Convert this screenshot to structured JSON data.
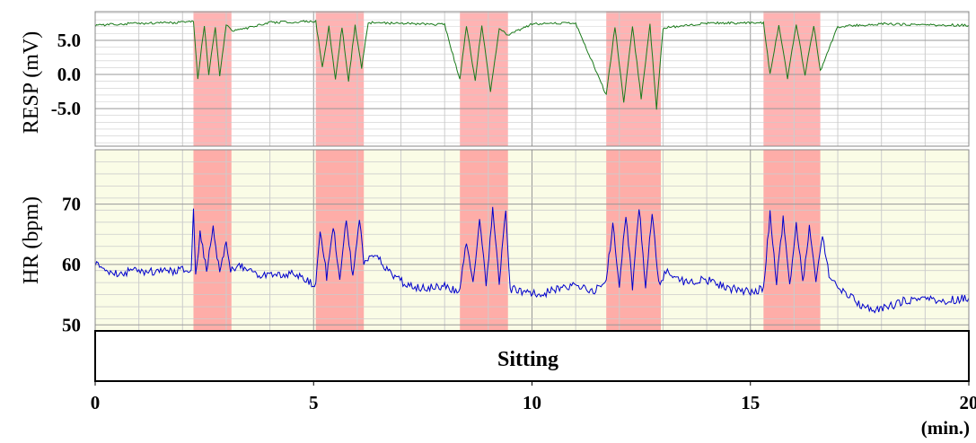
{
  "chart_data": [
    {
      "type": "line",
      "title": "",
      "ylabel": "RESP (mV)",
      "yticks": [
        "5.0",
        "0.0",
        "-5.0"
      ],
      "yticks_values": [
        5,
        0,
        -5
      ],
      "ylim": [
        -10.5,
        9.2
      ],
      "xlim": [
        0,
        20
      ],
      "grid": true,
      "series": [
        {
          "color": "#1a7a1a",
          "baseline": 7.5,
          "x": [
            0.0,
            1.0,
            2.0,
            2.25,
            2.35,
            2.5,
            2.6,
            2.75,
            2.85,
            3.0,
            3.15,
            4.0,
            5.05,
            5.2,
            5.35,
            5.5,
            5.65,
            5.8,
            5.95,
            6.1,
            6.25,
            7.0,
            8.0,
            8.35,
            8.5,
            8.7,
            8.85,
            9.05,
            9.25,
            9.45,
            10.0,
            11.0,
            11.7,
            11.9,
            12.1,
            12.3,
            12.5,
            12.7,
            12.85,
            13.0,
            14.0,
            15.3,
            15.45,
            15.65,
            15.85,
            16.05,
            16.25,
            16.45,
            16.6,
            17.0,
            18.0,
            19.0,
            20.0
          ],
          "y": [
            7.2,
            7.5,
            7.6,
            7.8,
            -0.5,
            7.2,
            0.0,
            7.0,
            -0.3,
            7.3,
            6.3,
            7.6,
            7.8,
            1.0,
            7.0,
            -0.8,
            7.0,
            -1.0,
            7.2,
            1.0,
            7.6,
            7.5,
            7.3,
            -0.8,
            7.2,
            -1.0,
            7.3,
            -2.5,
            6.8,
            5.8,
            7.4,
            7.5,
            -3.0,
            7.0,
            -4.0,
            7.1,
            -3.5,
            7.3,
            -5.0,
            6.8,
            7.5,
            7.6,
            0.0,
            7.2,
            -0.5,
            7.3,
            0.0,
            7.2,
            0.5,
            7.0,
            7.4,
            7.3,
            7.2
          ]
        }
      ],
      "shaded_intervals": [
        [
          2.25,
          3.12
        ],
        [
          5.05,
          6.15
        ],
        [
          8.35,
          9.45
        ],
        [
          11.7,
          12.95
        ],
        [
          15.3,
          16.6
        ]
      ]
    },
    {
      "type": "line",
      "title": "",
      "ylabel": "HR (bpm)",
      "yticks": [
        "70",
        "60",
        "50"
      ],
      "yticks_values": [
        70,
        60,
        50
      ],
      "ylim": [
        49,
        79
      ],
      "xlim": [
        0,
        20
      ],
      "grid": true,
      "background": "#fafce6",
      "series": [
        {
          "color": "#0000cc",
          "x": [
            0.0,
            0.2,
            0.5,
            1.0,
            1.5,
            2.0,
            2.2,
            2.25,
            2.3,
            2.4,
            2.55,
            2.7,
            2.85,
            3.0,
            3.1,
            3.3,
            3.6,
            4.0,
            4.5,
            4.8,
            5.05,
            5.15,
            5.3,
            5.45,
            5.6,
            5.75,
            5.9,
            6.05,
            6.15,
            6.4,
            6.8,
            7.2,
            7.6,
            8.0,
            8.35,
            8.5,
            8.65,
            8.8,
            8.95,
            9.1,
            9.25,
            9.4,
            9.5,
            9.8,
            10.2,
            10.6,
            11.0,
            11.4,
            11.7,
            11.85,
            12.0,
            12.15,
            12.3,
            12.45,
            12.6,
            12.75,
            12.9,
            13.1,
            13.5,
            14.0,
            14.5,
            15.0,
            15.3,
            15.45,
            15.6,
            15.75,
            15.9,
            16.05,
            16.2,
            16.35,
            16.5,
            16.65,
            16.8,
            17.0,
            17.3,
            17.6,
            18.0,
            18.5,
            19.0,
            19.5,
            20.0
          ],
          "y": [
            60.5,
            59.0,
            58.5,
            59.0,
            58.8,
            59.0,
            59.5,
            69.5,
            58.0,
            65.0,
            59.0,
            66.0,
            58.5,
            64.0,
            59.0,
            60.0,
            58.5,
            58.0,
            58.5,
            57.5,
            56.5,
            66.0,
            58.0,
            66.5,
            57.0,
            67.5,
            57.5,
            68.0,
            60.5,
            62.0,
            58.0,
            56.5,
            56.0,
            56.5,
            55.5,
            64.0,
            56.5,
            68.0,
            56.0,
            69.5,
            57.0,
            69.0,
            56.0,
            55.5,
            55.0,
            56.0,
            56.5,
            55.5,
            57.0,
            67.0,
            56.5,
            68.5,
            56.0,
            69.5,
            56.5,
            69.0,
            57.0,
            59.0,
            57.0,
            57.5,
            56.0,
            55.5,
            56.0,
            68.5,
            57.0,
            67.5,
            56.5,
            67.0,
            57.0,
            66.5,
            56.5,
            65.0,
            58.0,
            56.0,
            54.5,
            53.0,
            52.5,
            54.0,
            54.5,
            54.0,
            54.5
          ]
        }
      ],
      "shaded_intervals": [
        [
          2.25,
          3.12
        ],
        [
          5.05,
          6.15
        ],
        [
          8.35,
          9.45
        ],
        [
          11.7,
          12.95
        ],
        [
          15.3,
          16.6
        ]
      ]
    }
  ],
  "condition_bar": {
    "label": "Sitting"
  },
  "x_axis": {
    "ticks": [
      "0",
      "5",
      "10",
      "15",
      "20"
    ],
    "tick_values": [
      0,
      5,
      10,
      15,
      20
    ],
    "unit": "(min.)"
  },
  "colors": {
    "highlight": "#ff9999",
    "resp_line": "#1a7a1a",
    "hr_line": "#0000cc",
    "hr_background": "#fafce6",
    "grid": "#cccccc"
  }
}
